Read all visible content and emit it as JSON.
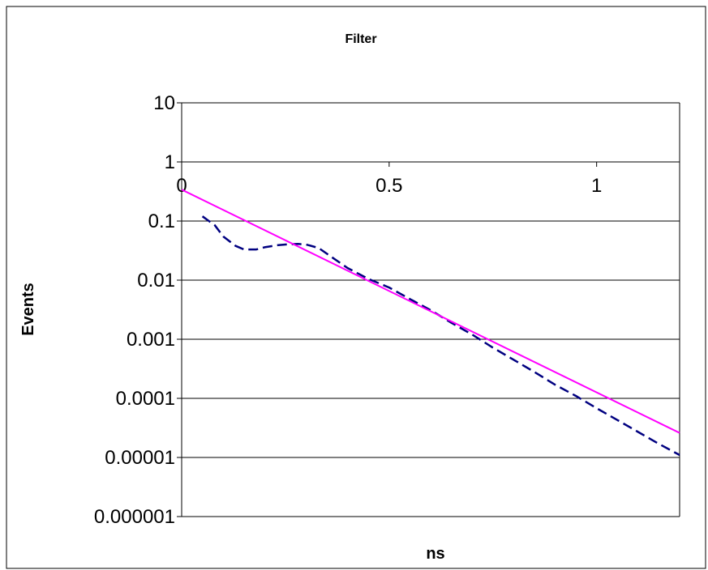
{
  "chart_data": {
    "type": "line",
    "title": "Filter",
    "xlabel": "ns",
    "ylabel": "Events",
    "y_scale": "log",
    "ylim": [
      1e-06,
      10
    ],
    "xlim": [
      0,
      1.2
    ],
    "y_tick_labels": [
      "10",
      "1",
      "0.1",
      "0.01",
      "0.001",
      "0.0001",
      "0.00001",
      "0.000001"
    ],
    "x_tick_labels": [
      "0",
      "0.5",
      "1"
    ],
    "x_ticks": [
      0,
      0.5,
      1
    ],
    "x_axis_crosses_at": 1,
    "grid": "horizontal",
    "legend": "none",
    "series": [
      {
        "style": "dashed",
        "color": "#000080",
        "x": [
          0.05,
          0.08,
          0.1,
          0.13,
          0.15,
          0.18,
          0.2,
          0.23,
          0.25,
          0.28,
          0.3,
          0.33,
          0.35,
          0.38,
          0.4,
          0.45,
          0.5,
          0.55,
          0.6,
          0.65,
          0.7,
          0.75,
          0.8,
          0.85,
          0.9,
          0.95,
          1.0,
          1.05,
          1.1,
          1.15,
          1.2
        ],
        "y": [
          0.12,
          0.085,
          0.055,
          0.038,
          0.033,
          0.033,
          0.036,
          0.039,
          0.04,
          0.041,
          0.04,
          0.035,
          0.028,
          0.02,
          0.016,
          0.0105,
          0.0075,
          0.0048,
          0.0031,
          0.0019,
          0.0012,
          0.00072,
          0.00045,
          0.00028,
          0.00017,
          0.00011,
          6.8e-05,
          4.3e-05,
          2.7e-05,
          1.7e-05,
          1.1e-05
        ]
      },
      {
        "style": "solid",
        "color": "#ff00ff",
        "x": [
          0,
          1.2
        ],
        "y": [
          0.34,
          2.6e-05
        ]
      }
    ]
  }
}
